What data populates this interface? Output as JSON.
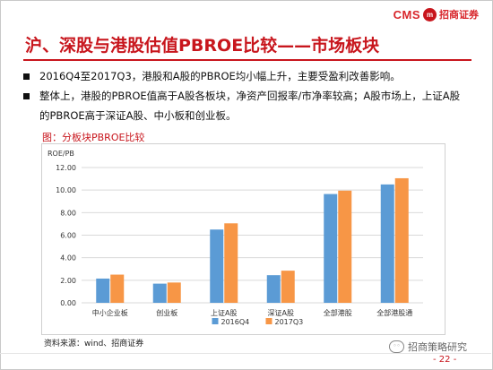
{
  "header": {
    "logo_text": "CMS",
    "logo_mark": "m",
    "logo_cn": "招商证券"
  },
  "title": "沪、深股与港股估值PBROE比较——市场板块",
  "bullets": [
    "2016Q4至2017Q3，港股和A股的PBROE均小幅上升，主要受盈利改善影响。",
    "整体上，港股的PBROE值高于A股各板块，净资产回报率/市净率较高；A股市场上，上证A股的PBROE高于深证A股、中小板和创业板。"
  ],
  "caption": "图：分板块PBROE比较",
  "chart_data": {
    "type": "bar",
    "ylabel": "ROE/PB",
    "ylim": [
      0,
      12
    ],
    "yticks": [
      "0.00",
      "2.00",
      "4.00",
      "6.00",
      "8.00",
      "10.00",
      "12.00"
    ],
    "grid": true,
    "legend_position": "bottom",
    "categories": [
      "中小企业板",
      "创业板",
      "上证A股",
      "深证A股",
      "全部港股",
      "全部港股通"
    ],
    "series": [
      {
        "name": "2016Q4",
        "color": "#5b9bd5",
        "values": [
          2.15,
          1.7,
          6.5,
          2.45,
          9.65,
          10.5
        ]
      },
      {
        "name": "2017Q3",
        "color": "#f79646",
        "values": [
          2.5,
          1.8,
          7.05,
          2.85,
          9.95,
          11.05
        ]
      }
    ]
  },
  "source": "资料来源：wind、招商证券",
  "watermark": "招商策略研究",
  "page_number": "- 22 -"
}
